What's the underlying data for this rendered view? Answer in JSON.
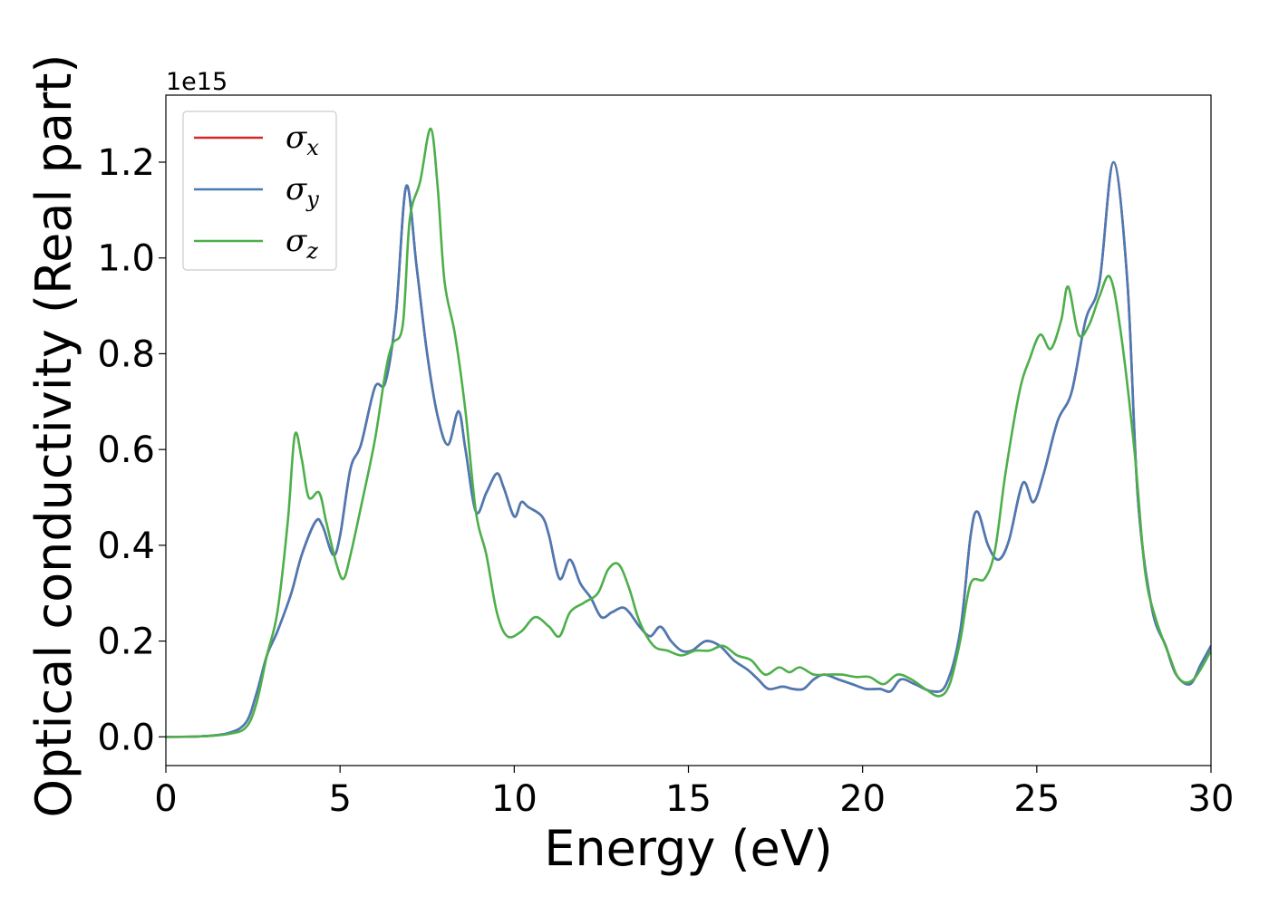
{
  "chart_data": {
    "type": "line",
    "title": "",
    "xlabel": "Energy (eV)",
    "ylabel": "Optical conductivity (Real part)",
    "y_offset_label": "1e15",
    "xlim": [
      0,
      30
    ],
    "ylim": [
      -0.06,
      1.34
    ],
    "x_ticks": [
      0,
      5,
      10,
      15,
      20,
      25,
      30
    ],
    "x_tick_labels": [
      "0",
      "5",
      "10",
      "15",
      "20",
      "25",
      "30"
    ],
    "y_ticks": [
      0.0,
      0.2,
      0.4,
      0.6,
      0.8,
      1.0,
      1.2
    ],
    "y_tick_labels": [
      "0.0",
      "0.2",
      "0.4",
      "0.6",
      "0.8",
      "1.0",
      "1.2"
    ],
    "grid": false,
    "legend_position": "top-left",
    "series": [
      {
        "name": "σx",
        "legend_symbol": "σ",
        "legend_subscript": "x",
        "color": "#d62728",
        "points": [
          [
            0,
            0
          ],
          [
            1,
            0.001
          ],
          [
            1.8,
            0.008
          ],
          [
            2.3,
            0.03
          ],
          [
            2.6,
            0.09
          ],
          [
            2.9,
            0.17
          ],
          [
            3.2,
            0.22
          ],
          [
            3.6,
            0.3
          ],
          [
            3.9,
            0.38
          ],
          [
            4.3,
            0.45
          ],
          [
            4.5,
            0.44
          ],
          [
            4.8,
            0.38
          ],
          [
            5.0,
            0.42
          ],
          [
            5.3,
            0.56
          ],
          [
            5.6,
            0.61
          ],
          [
            6.0,
            0.73
          ],
          [
            6.3,
            0.74
          ],
          [
            6.6,
            0.88
          ],
          [
            6.9,
            1.15
          ],
          [
            7.2,
            0.98
          ],
          [
            7.5,
            0.8
          ],
          [
            7.8,
            0.67
          ],
          [
            8.1,
            0.61
          ],
          [
            8.4,
            0.68
          ],
          [
            8.6,
            0.6
          ],
          [
            8.9,
            0.47
          ],
          [
            9.2,
            0.51
          ],
          [
            9.5,
            0.55
          ],
          [
            9.7,
            0.52
          ],
          [
            10.0,
            0.46
          ],
          [
            10.2,
            0.49
          ],
          [
            10.4,
            0.48
          ],
          [
            10.8,
            0.46
          ],
          [
            11.0,
            0.42
          ],
          [
            11.3,
            0.33
          ],
          [
            11.6,
            0.37
          ],
          [
            11.9,
            0.32
          ],
          [
            12.2,
            0.29
          ],
          [
            12.5,
            0.25
          ],
          [
            12.8,
            0.26
          ],
          [
            13.1,
            0.27
          ],
          [
            13.3,
            0.26
          ],
          [
            13.6,
            0.23
          ],
          [
            13.9,
            0.21
          ],
          [
            14.2,
            0.23
          ],
          [
            14.5,
            0.2
          ],
          [
            14.8,
            0.18
          ],
          [
            15.1,
            0.18
          ],
          [
            15.5,
            0.2
          ],
          [
            15.9,
            0.19
          ],
          [
            16.3,
            0.16
          ],
          [
            16.7,
            0.14
          ],
          [
            17.0,
            0.12
          ],
          [
            17.3,
            0.1
          ],
          [
            17.7,
            0.105
          ],
          [
            18.0,
            0.1
          ],
          [
            18.3,
            0.1
          ],
          [
            18.6,
            0.12
          ],
          [
            18.9,
            0.13
          ],
          [
            19.3,
            0.12
          ],
          [
            19.7,
            0.11
          ],
          [
            20.1,
            0.1
          ],
          [
            20.5,
            0.1
          ],
          [
            20.8,
            0.095
          ],
          [
            21.1,
            0.12
          ],
          [
            21.5,
            0.11
          ],
          [
            22.0,
            0.095
          ],
          [
            22.4,
            0.11
          ],
          [
            22.8,
            0.22
          ],
          [
            23.1,
            0.42
          ],
          [
            23.3,
            0.47
          ],
          [
            23.6,
            0.4
          ],
          [
            23.9,
            0.37
          ],
          [
            24.2,
            0.41
          ],
          [
            24.6,
            0.53
          ],
          [
            24.9,
            0.49
          ],
          [
            25.2,
            0.55
          ],
          [
            25.6,
            0.66
          ],
          [
            26.0,
            0.72
          ],
          [
            26.4,
            0.87
          ],
          [
            26.8,
            0.95
          ],
          [
            27.2,
            1.2
          ],
          [
            27.6,
            0.95
          ],
          [
            27.9,
            0.5
          ],
          [
            28.3,
            0.27
          ],
          [
            28.7,
            0.19
          ],
          [
            29.0,
            0.13
          ],
          [
            29.4,
            0.11
          ],
          [
            29.7,
            0.15
          ],
          [
            30.0,
            0.19
          ]
        ]
      },
      {
        "name": "σy",
        "legend_symbol": "σ",
        "legend_subscript": "y",
        "color": "#4a7ab5",
        "points": [
          [
            0,
            0
          ],
          [
            1,
            0.001
          ],
          [
            1.8,
            0.008
          ],
          [
            2.3,
            0.03
          ],
          [
            2.6,
            0.09
          ],
          [
            2.9,
            0.17
          ],
          [
            3.2,
            0.22
          ],
          [
            3.6,
            0.3
          ],
          [
            3.9,
            0.38
          ],
          [
            4.3,
            0.45
          ],
          [
            4.5,
            0.44
          ],
          [
            4.8,
            0.38
          ],
          [
            5.0,
            0.42
          ],
          [
            5.3,
            0.56
          ],
          [
            5.6,
            0.61
          ],
          [
            6.0,
            0.73
          ],
          [
            6.3,
            0.74
          ],
          [
            6.6,
            0.88
          ],
          [
            6.9,
            1.15
          ],
          [
            7.2,
            0.98
          ],
          [
            7.5,
            0.8
          ],
          [
            7.8,
            0.67
          ],
          [
            8.1,
            0.61
          ],
          [
            8.4,
            0.68
          ],
          [
            8.6,
            0.6
          ],
          [
            8.9,
            0.47
          ],
          [
            9.2,
            0.51
          ],
          [
            9.5,
            0.55
          ],
          [
            9.7,
            0.52
          ],
          [
            10.0,
            0.46
          ],
          [
            10.2,
            0.49
          ],
          [
            10.4,
            0.48
          ],
          [
            10.8,
            0.46
          ],
          [
            11.0,
            0.42
          ],
          [
            11.3,
            0.33
          ],
          [
            11.6,
            0.37
          ],
          [
            11.9,
            0.32
          ],
          [
            12.2,
            0.29
          ],
          [
            12.5,
            0.25
          ],
          [
            12.8,
            0.26
          ],
          [
            13.1,
            0.27
          ],
          [
            13.3,
            0.26
          ],
          [
            13.6,
            0.23
          ],
          [
            13.9,
            0.21
          ],
          [
            14.2,
            0.23
          ],
          [
            14.5,
            0.2
          ],
          [
            14.8,
            0.18
          ],
          [
            15.1,
            0.18
          ],
          [
            15.5,
            0.2
          ],
          [
            15.9,
            0.19
          ],
          [
            16.3,
            0.16
          ],
          [
            16.7,
            0.14
          ],
          [
            17.0,
            0.12
          ],
          [
            17.3,
            0.1
          ],
          [
            17.7,
            0.105
          ],
          [
            18.0,
            0.1
          ],
          [
            18.3,
            0.1
          ],
          [
            18.6,
            0.12
          ],
          [
            18.9,
            0.13
          ],
          [
            19.3,
            0.12
          ],
          [
            19.7,
            0.11
          ],
          [
            20.1,
            0.1
          ],
          [
            20.5,
            0.1
          ],
          [
            20.8,
            0.095
          ],
          [
            21.1,
            0.12
          ],
          [
            21.5,
            0.11
          ],
          [
            22.0,
            0.095
          ],
          [
            22.4,
            0.11
          ],
          [
            22.8,
            0.22
          ],
          [
            23.1,
            0.42
          ],
          [
            23.3,
            0.47
          ],
          [
            23.6,
            0.4
          ],
          [
            23.9,
            0.37
          ],
          [
            24.2,
            0.41
          ],
          [
            24.6,
            0.53
          ],
          [
            24.9,
            0.49
          ],
          [
            25.2,
            0.55
          ],
          [
            25.6,
            0.66
          ],
          [
            26.0,
            0.72
          ],
          [
            26.4,
            0.87
          ],
          [
            26.8,
            0.95
          ],
          [
            27.2,
            1.2
          ],
          [
            27.6,
            0.95
          ],
          [
            27.9,
            0.5
          ],
          [
            28.3,
            0.27
          ],
          [
            28.7,
            0.19
          ],
          [
            29.0,
            0.13
          ],
          [
            29.4,
            0.11
          ],
          [
            29.7,
            0.15
          ],
          [
            30.0,
            0.19
          ]
        ]
      },
      {
        "name": "σz",
        "legend_symbol": "σ",
        "legend_subscript": "z",
        "color": "#4daf4a",
        "points": [
          [
            0,
            0
          ],
          [
            1,
            0.001
          ],
          [
            1.8,
            0.006
          ],
          [
            2.3,
            0.02
          ],
          [
            2.6,
            0.07
          ],
          [
            2.9,
            0.17
          ],
          [
            3.2,
            0.26
          ],
          [
            3.5,
            0.45
          ],
          [
            3.7,
            0.63
          ],
          [
            3.9,
            0.58
          ],
          [
            4.1,
            0.5
          ],
          [
            4.4,
            0.51
          ],
          [
            4.6,
            0.45
          ],
          [
            4.9,
            0.36
          ],
          [
            5.1,
            0.33
          ],
          [
            5.3,
            0.38
          ],
          [
            5.6,
            0.48
          ],
          [
            6.0,
            0.62
          ],
          [
            6.3,
            0.76
          ],
          [
            6.5,
            0.82
          ],
          [
            6.8,
            0.86
          ],
          [
            7.0,
            1.08
          ],
          [
            7.3,
            1.16
          ],
          [
            7.6,
            1.27
          ],
          [
            7.8,
            1.15
          ],
          [
            8.0,
            0.95
          ],
          [
            8.3,
            0.84
          ],
          [
            8.6,
            0.68
          ],
          [
            8.9,
            0.47
          ],
          [
            9.2,
            0.38
          ],
          [
            9.5,
            0.26
          ],
          [
            9.8,
            0.21
          ],
          [
            10.2,
            0.22
          ],
          [
            10.6,
            0.25
          ],
          [
            11.0,
            0.23
          ],
          [
            11.3,
            0.21
          ],
          [
            11.6,
            0.26
          ],
          [
            12.0,
            0.28
          ],
          [
            12.4,
            0.3
          ],
          [
            12.7,
            0.35
          ],
          [
            13.0,
            0.36
          ],
          [
            13.3,
            0.31
          ],
          [
            13.6,
            0.24
          ],
          [
            14.0,
            0.19
          ],
          [
            14.4,
            0.18
          ],
          [
            14.8,
            0.17
          ],
          [
            15.2,
            0.18
          ],
          [
            15.6,
            0.18
          ],
          [
            16.0,
            0.19
          ],
          [
            16.4,
            0.17
          ],
          [
            16.8,
            0.16
          ],
          [
            17.2,
            0.13
          ],
          [
            17.6,
            0.145
          ],
          [
            17.9,
            0.135
          ],
          [
            18.2,
            0.145
          ],
          [
            18.6,
            0.13
          ],
          [
            19.0,
            0.13
          ],
          [
            19.4,
            0.13
          ],
          [
            19.8,
            0.125
          ],
          [
            20.2,
            0.125
          ],
          [
            20.6,
            0.11
          ],
          [
            21.0,
            0.13
          ],
          [
            21.4,
            0.12
          ],
          [
            21.8,
            0.1
          ],
          [
            22.2,
            0.085
          ],
          [
            22.5,
            0.11
          ],
          [
            22.8,
            0.2
          ],
          [
            23.1,
            0.32
          ],
          [
            23.5,
            0.33
          ],
          [
            23.8,
            0.39
          ],
          [
            24.1,
            0.55
          ],
          [
            24.5,
            0.72
          ],
          [
            24.8,
            0.79
          ],
          [
            25.1,
            0.84
          ],
          [
            25.4,
            0.81
          ],
          [
            25.7,
            0.87
          ],
          [
            25.9,
            0.94
          ],
          [
            26.2,
            0.84
          ],
          [
            26.5,
            0.86
          ],
          [
            26.8,
            0.92
          ],
          [
            27.1,
            0.96
          ],
          [
            27.4,
            0.85
          ],
          [
            27.8,
            0.6
          ],
          [
            28.1,
            0.35
          ],
          [
            28.4,
            0.25
          ],
          [
            28.8,
            0.17
          ],
          [
            29.1,
            0.12
          ],
          [
            29.5,
            0.12
          ],
          [
            30.0,
            0.18
          ]
        ]
      }
    ]
  }
}
